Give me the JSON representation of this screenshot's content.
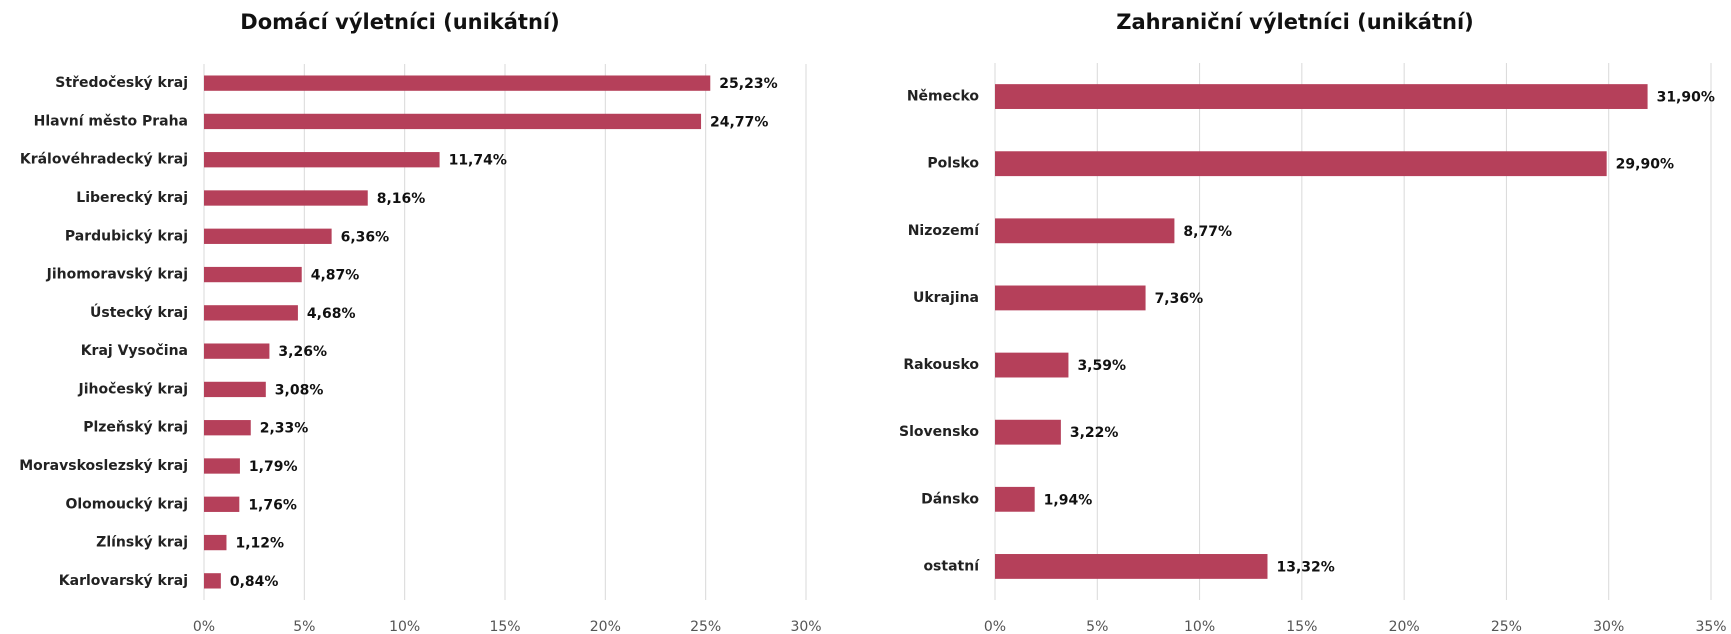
{
  "chart_data": [
    {
      "type": "bar",
      "orientation": "horizontal",
      "title": "Domácí výletníci (unikátní)",
      "categories": [
        "Středočeský kraj",
        "Hlavní město Praha",
        "Královéhradecký kraj",
        "Liberecký kraj",
        "Pardubický kraj",
        "Jihomoravský kraj",
        "Ústecký kraj",
        "Kraj Vysočina",
        "Jihočeský kraj",
        "Plzeňský kraj",
        "Moravskoslezský kraj",
        "Olomoucký kraj",
        "Zlínský kraj",
        "Karlovarský kraj"
      ],
      "values": [
        25.23,
        24.77,
        11.74,
        8.16,
        6.36,
        4.87,
        4.68,
        3.26,
        3.08,
        2.33,
        1.79,
        1.76,
        1.12,
        0.84
      ],
      "value_labels": [
        "25,23%",
        "24,77%",
        "11,74%",
        "8,16%",
        "6,36%",
        "4,87%",
        "4,68%",
        "3,26%",
        "3,08%",
        "2,33%",
        "1,79%",
        "1,76%",
        "1,12%",
        "0,84%"
      ],
      "color": "#b5405a",
      "xlim": [
        0,
        30
      ],
      "xticks": [
        {
          "value": 0,
          "label": "0%"
        },
        {
          "value": 5,
          "label": "5%"
        },
        {
          "value": 10,
          "label": "10%"
        },
        {
          "value": 15,
          "label": "15%"
        },
        {
          "value": 20,
          "label": "20%"
        },
        {
          "value": 25,
          "label": "25%"
        },
        {
          "value": 30,
          "label": "30%"
        }
      ],
      "grid": true
    },
    {
      "type": "bar",
      "orientation": "horizontal",
      "title": "Zahraniční výletníci (unikátní)",
      "categories": [
        "Německo",
        "Polsko",
        "Nizozemí",
        "Ukrajina",
        "Rakousko",
        "Slovensko",
        "Dánsko",
        "ostatní"
      ],
      "values": [
        31.9,
        29.9,
        8.77,
        7.36,
        3.59,
        3.22,
        1.94,
        13.32
      ],
      "value_labels": [
        "31,90%",
        "29,90%",
        "8,77%",
        "7,36%",
        "3,59%",
        "3,22%",
        "1,94%",
        "13,32%"
      ],
      "color": "#b5405a",
      "xlim": [
        0,
        35
      ],
      "xticks": [
        {
          "value": 0,
          "label": "0%"
        },
        {
          "value": 5,
          "label": "5%"
        },
        {
          "value": 10,
          "label": "10%"
        },
        {
          "value": 15,
          "label": "15%"
        },
        {
          "value": 20,
          "label": "20%"
        },
        {
          "value": 25,
          "label": "25%"
        },
        {
          "value": 30,
          "label": "30%"
        },
        {
          "value": 35,
          "label": "35%"
        }
      ],
      "grid": true
    }
  ]
}
